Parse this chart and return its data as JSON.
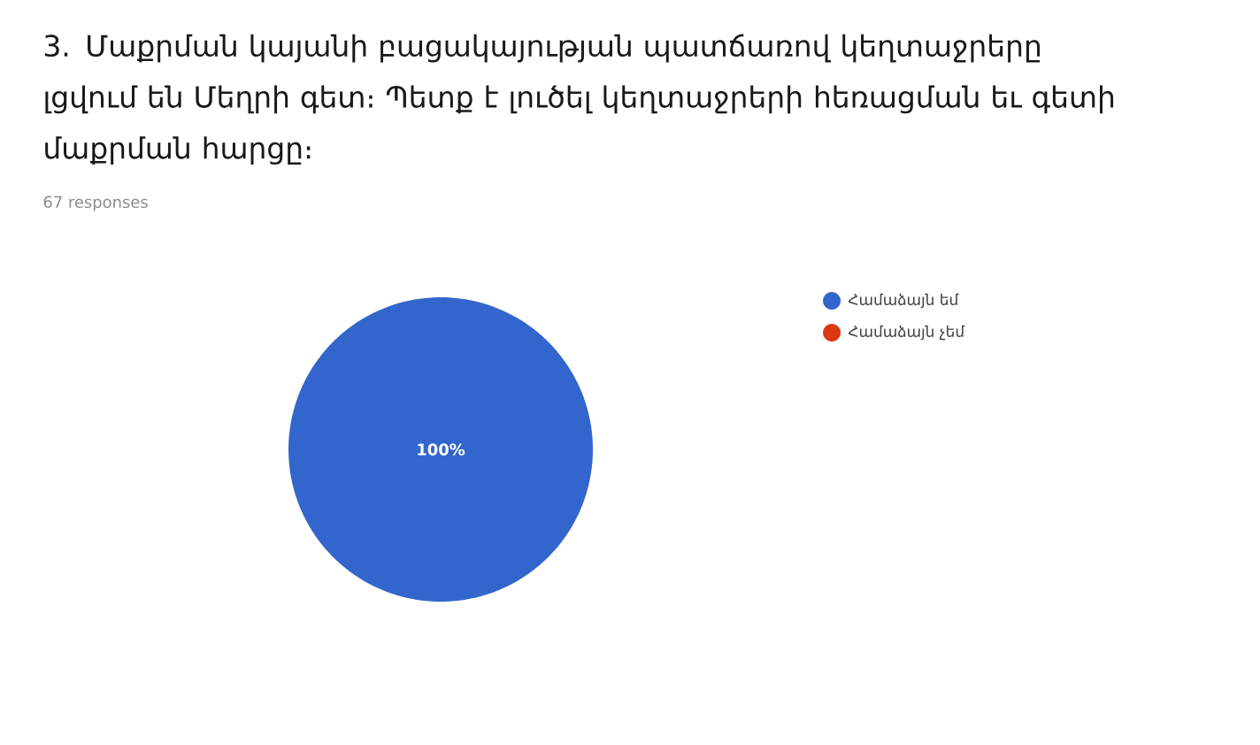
{
  "chart_data": {
    "type": "pie",
    "title": "3. Մաքրման կայանի բացակայության պատճառով կեղտաջրերը լցվում են Մեղրի գետ։ Պետք է լուծել կեղտաջրերի հեռացման եւ գետի մաքրման հարցը։",
    "subtitle": "67 responses",
    "categories": [
      "Համաձայն եմ",
      "Համաձայն չեմ"
    ],
    "values": [
      100,
      0
    ],
    "colors": [
      "#3366cc",
      "#dc3912"
    ],
    "value_labels": [
      "100%",
      null
    ],
    "legend": "right"
  }
}
